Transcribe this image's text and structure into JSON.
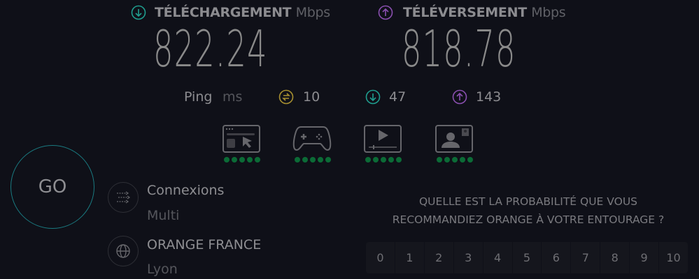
{
  "download": {
    "label": "TÉLÉCHARGEMENT",
    "unit": "Mbps",
    "value": "822.24",
    "icon": "arrow-down-circle-icon",
    "color": "#1f9e8f"
  },
  "upload": {
    "label": "TÉLÉVERSEMENT",
    "unit": "Mbps",
    "value": "818.78",
    "icon": "arrow-up-circle-icon",
    "color": "#8a4fb0"
  },
  "ping": {
    "label": "Ping",
    "unit": "ms",
    "idle": "10",
    "download": "47",
    "upload": "143",
    "idle_color": "#a89030"
  },
  "quality": {
    "icons": [
      "web-browsing-icon",
      "gaming-icon",
      "video-streaming-icon",
      "video-call-icon"
    ],
    "rating": 5,
    "max": 5,
    "dot_color": "#0b6b36"
  },
  "go_button": {
    "label": "GO"
  },
  "connections": {
    "title": "Connexions",
    "value": "Multi"
  },
  "provider": {
    "title": "ORANGE FRANCE",
    "value": "Lyon"
  },
  "survey": {
    "line1": "QUELLE EST LA PROBABILITÉ QUE VOUS",
    "line2": "RECOMMANDIEZ ORANGE À VOTRE ENTOURAGE ?",
    "options": [
      "0",
      "1",
      "2",
      "3",
      "4",
      "5",
      "6",
      "7",
      "8",
      "9",
      "10"
    ]
  }
}
